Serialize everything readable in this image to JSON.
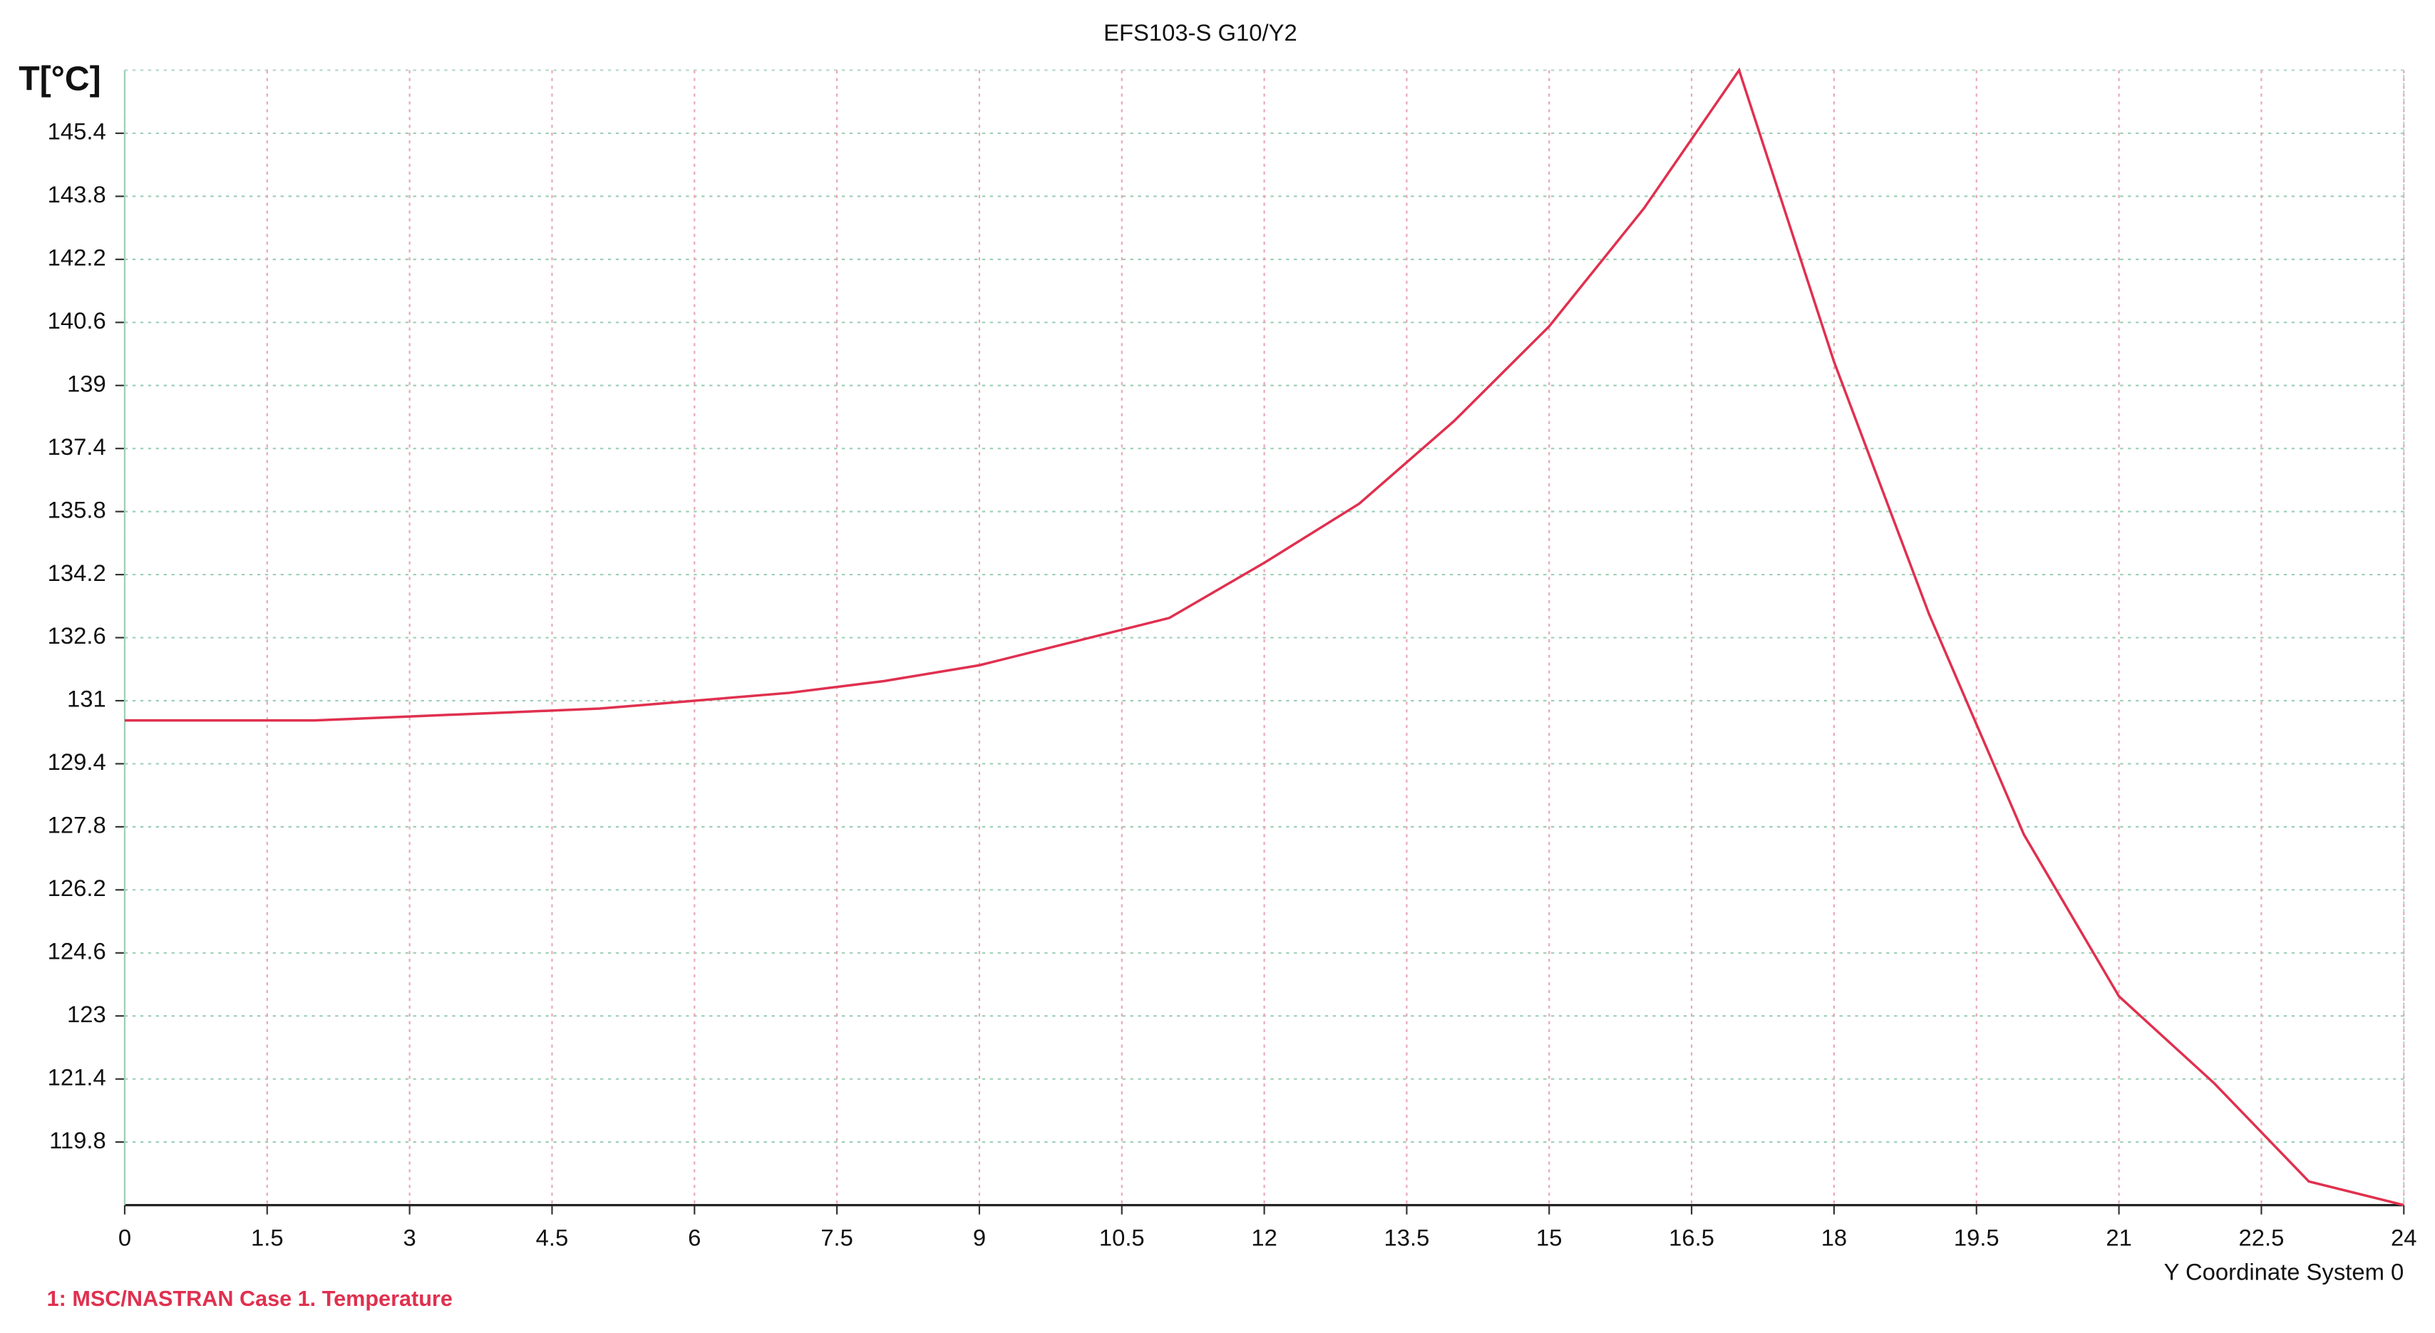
{
  "chart_data": {
    "type": "line",
    "title": "EFS103-S G10/Y2",
    "y_label": "T[°C]",
    "x_label": "Y Coordinate System 0",
    "x": [
      0,
      1,
      2,
      3,
      4,
      5,
      6,
      7,
      8,
      9,
      10,
      11,
      12,
      13,
      14,
      15,
      16,
      17,
      18,
      19,
      20,
      21,
      22,
      23,
      24
    ],
    "series": [
      {
        "name": "1: MSC/NASTRAN Case 1. Temperature",
        "color": "#e0304f",
        "values": [
          130.5,
          130.5,
          130.5,
          130.6,
          130.7,
          130.8,
          131.0,
          131.2,
          131.5,
          131.9,
          132.5,
          133.1,
          134.5,
          136.0,
          138.1,
          140.5,
          143.5,
          147.0,
          139.6,
          133.2,
          127.6,
          123.5,
          121.3,
          118.8,
          118.2
        ]
      }
    ],
    "xlim": [
      0,
      24
    ],
    "xticks": [
      0,
      1.5,
      3,
      4.5,
      6,
      7.5,
      9,
      10.5,
      12,
      13.5,
      15,
      16.5,
      18,
      19.5,
      21,
      22.5,
      24
    ],
    "ylim": [
      118.2,
      147.0
    ],
    "yticks": [
      119.8,
      121.4,
      123,
      124.6,
      126.2,
      127.8,
      129.4,
      131,
      132.6,
      134.2,
      135.8,
      137.4,
      139,
      140.6,
      142.2,
      143.8,
      145.4
    ],
    "grid": true
  }
}
